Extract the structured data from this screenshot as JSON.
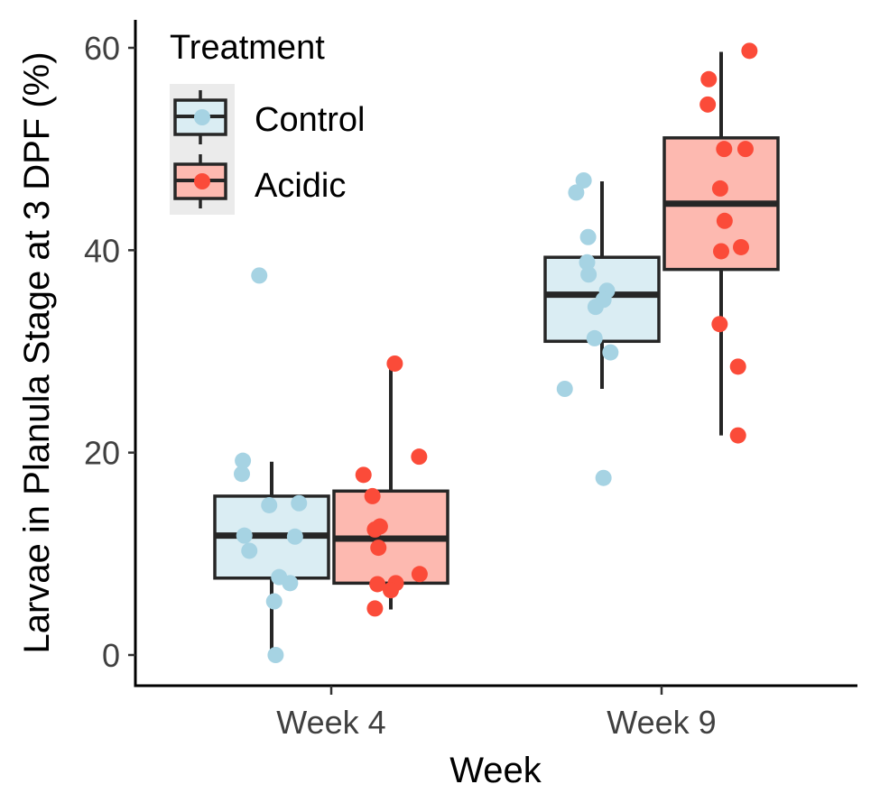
{
  "chart_data": {
    "type": "box",
    "xlabel": "Week",
    "ylabel": "Larvae in Planula Stage at 3 DPF (%)",
    "categories": [
      "Week 4",
      "Week 9"
    ],
    "ylim": [
      -3,
      63
    ],
    "yticks": [
      0,
      20,
      40,
      60
    ],
    "ytick_labels": [
      "0",
      "20",
      "40",
      "60"
    ],
    "grid": false,
    "legend": {
      "title": "Treatment",
      "position": "top-left",
      "entries": [
        "Control",
        "Acidic"
      ]
    },
    "series": [
      {
        "name": "Control",
        "fill": "#daedf3",
        "point_color": "#a6d3e3",
        "boxes": [
          {
            "category": "Week 4",
            "whisker_low": 0.1,
            "q1": 7.6,
            "median": 11.8,
            "q3": 15.7,
            "whisker_high": 19.1
          },
          {
            "category": "Week 9",
            "whisker_low": 26.3,
            "q1": 31.0,
            "median": 35.6,
            "q3": 39.3,
            "whisker_high": 46.8
          }
        ],
        "points": [
          {
            "category": "Week 4",
            "y": 37.5,
            "jitter": -0.25
          },
          {
            "category": "Week 4",
            "y": 19.2,
            "jitter": -0.58
          },
          {
            "category": "Week 4",
            "y": 17.9,
            "jitter": -0.6
          },
          {
            "category": "Week 4",
            "y": 15.0,
            "jitter": 0.55
          },
          {
            "category": "Week 4",
            "y": 14.8,
            "jitter": -0.05
          },
          {
            "category": "Week 4",
            "y": 11.8,
            "jitter": -0.55
          },
          {
            "category": "Week 4",
            "y": 11.7,
            "jitter": 0.47
          },
          {
            "category": "Week 4",
            "y": 10.3,
            "jitter": -0.45
          },
          {
            "category": "Week 4",
            "y": 7.7,
            "jitter": 0.15
          },
          {
            "category": "Week 4",
            "y": 7.1,
            "jitter": 0.37
          },
          {
            "category": "Week 4",
            "y": 5.3,
            "jitter": 0.05
          },
          {
            "category": "Week 4",
            "y": 0.0,
            "jitter": 0.08
          },
          {
            "category": "Week 9",
            "y": 46.9,
            "jitter": -0.37
          },
          {
            "category": "Week 9",
            "y": 45.7,
            "jitter": -0.52
          },
          {
            "category": "Week 9",
            "y": 41.3,
            "jitter": -0.28
          },
          {
            "category": "Week 9",
            "y": 38.8,
            "jitter": -0.3
          },
          {
            "category": "Week 9",
            "y": 37.6,
            "jitter": -0.27
          },
          {
            "category": "Week 9",
            "y": 36.0,
            "jitter": 0.1
          },
          {
            "category": "Week 9",
            "y": 35.1,
            "jitter": 0.03
          },
          {
            "category": "Week 9",
            "y": 34.4,
            "jitter": -0.13
          },
          {
            "category": "Week 9",
            "y": 31.3,
            "jitter": -0.15
          },
          {
            "category": "Week 9",
            "y": 29.9,
            "jitter": 0.17
          },
          {
            "category": "Week 9",
            "y": 26.3,
            "jitter": -0.75
          },
          {
            "category": "Week 9",
            "y": 17.5,
            "jitter": 0.03
          }
        ]
      },
      {
        "name": "Acidic",
        "fill": "#fdb9b0",
        "point_color": "#fb4b39",
        "boxes": [
          {
            "category": "Week 4",
            "whisker_low": 4.5,
            "q1": 7.1,
            "median": 11.5,
            "q3": 16.2,
            "whisker_high": 28.9
          },
          {
            "category": "Week 9",
            "whisker_low": 21.7,
            "q1": 38.1,
            "median": 44.6,
            "q3": 51.1,
            "whisker_high": 59.6
          }
        ],
        "points": [
          {
            "category": "Week 4",
            "y": 28.8,
            "jitter": 0.08
          },
          {
            "category": "Week 4",
            "y": 19.6,
            "jitter": 0.57
          },
          {
            "category": "Week 4",
            "y": 17.8,
            "jitter": -0.55
          },
          {
            "category": "Week 4",
            "y": 15.7,
            "jitter": -0.37
          },
          {
            "category": "Week 4",
            "y": 12.7,
            "jitter": -0.22
          },
          {
            "category": "Week 4",
            "y": 12.4,
            "jitter": -0.32
          },
          {
            "category": "Week 4",
            "y": 10.6,
            "jitter": -0.25
          },
          {
            "category": "Week 4",
            "y": 8.0,
            "jitter": 0.58
          },
          {
            "category": "Week 4",
            "y": 7.1,
            "jitter": 0.1
          },
          {
            "category": "Week 4",
            "y": 7.0,
            "jitter": -0.27
          },
          {
            "category": "Week 4",
            "y": 6.4,
            "jitter": 0.0
          },
          {
            "category": "Week 4",
            "y": 4.6,
            "jitter": -0.32
          },
          {
            "category": "Week 9",
            "y": 59.7,
            "jitter": 0.57
          },
          {
            "category": "Week 9",
            "y": 56.9,
            "jitter": -0.25
          },
          {
            "category": "Week 9",
            "y": 54.4,
            "jitter": -0.27
          },
          {
            "category": "Week 9",
            "y": 50.0,
            "jitter": 0.06
          },
          {
            "category": "Week 9",
            "y": 50.0,
            "jitter": 0.49
          },
          {
            "category": "Week 9",
            "y": 46.1,
            "jitter": -0.02
          },
          {
            "category": "Week 9",
            "y": 42.9,
            "jitter": 0.07
          },
          {
            "category": "Week 9",
            "y": 40.3,
            "jitter": 0.4
          },
          {
            "category": "Week 9",
            "y": 39.9,
            "jitter": 0.0
          },
          {
            "category": "Week 9",
            "y": 32.7,
            "jitter": -0.03
          },
          {
            "category": "Week 9",
            "y": 28.5,
            "jitter": 0.34
          },
          {
            "category": "Week 9",
            "y": 21.7,
            "jitter": 0.34
          }
        ]
      }
    ]
  }
}
